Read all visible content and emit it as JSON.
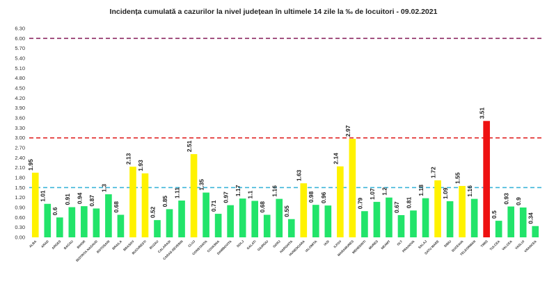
{
  "chart_data": {
    "type": "bar",
    "title": "Incidența cumulată a cazurilor la nivel județean în ultimele 14 zile   la ‰ de locuitori  - 09.02.2021",
    "xlabel": "",
    "ylabel": "",
    "ylim": [
      0,
      6.3
    ],
    "yticks": [
      "0.00",
      "0.30",
      "0.60",
      "0.90",
      "1.20",
      "1.50",
      "1.80",
      "2.10",
      "2.40",
      "2.70",
      "3.00",
      "3.30",
      "3.60",
      "3.90",
      "4.20",
      "4.50",
      "4.80",
      "5.10",
      "5.40",
      "5.70",
      "6.00",
      "6.30"
    ],
    "grid": false,
    "categories": [
      "ALBA",
      "ARAD",
      "ARGES",
      "BACAU",
      "BIHOR",
      "BISTRITA NASAUD",
      "BOTOSANI",
      "BRAILA",
      "BRASOV",
      "BUCURESTI",
      "BUZAU",
      "CALARASI",
      "CARAS-SEVERIN",
      "CLUJ",
      "CONSTANTA",
      "COVASNA",
      "DAMBOVITA",
      "DOLJ",
      "GALATI",
      "GIURGIU",
      "GORJ",
      "HARGHITA",
      "HUNEDOARA",
      "IALOMITA",
      "IASI",
      "ILFOV",
      "MARAMURES",
      "MEHEDINTI",
      "MURES",
      "NEAMT",
      "OLT",
      "PRAHOVA",
      "SALAJ",
      "SATU MARE",
      "SIBIU",
      "SUCEAVA",
      "TELEORMAN",
      "TIMIS",
      "TULCEA",
      "VALCEA",
      "VASLUI",
      "VRANCEA"
    ],
    "values": [
      1.95,
      1.01,
      0.6,
      0.91,
      0.94,
      0.87,
      1.3,
      0.68,
      2.13,
      1.93,
      0.52,
      0.85,
      1.11,
      2.51,
      1.35,
      0.71,
      0.97,
      1.17,
      1.1,
      0.68,
      1.16,
      0.55,
      1.63,
      0.98,
      0.96,
      2.14,
      2.97,
      0.79,
      1.07,
      1.2,
      0.67,
      0.81,
      1.18,
      1.72,
      1.09,
      1.55,
      1.16,
      3.51,
      0.5,
      0.93,
      0.9,
      0.34
    ],
    "value_labels": [
      "1.95",
      "1.01",
      "0.6",
      "0.91",
      "0.94",
      "0.87",
      "1.3",
      "0.68",
      "2.13",
      "1.93",
      "0.52",
      "0.85",
      "1.11",
      "2.51",
      "1.35",
      "0.71",
      "0.97",
      "1.17",
      "1.1",
      "0.68",
      "1.16",
      "0.55",
      "1.63",
      "0.98",
      "0.96",
      "2.14",
      "2.97",
      "0.79",
      "1.07",
      "1.2",
      "0.67",
      "0.81",
      "1.18",
      "1.72",
      "1.09",
      "1.55",
      "1.16",
      "3.51",
      "0.5",
      "0.93",
      "0.9",
      "0.34"
    ],
    "thresholds": [
      {
        "value": 1.5,
        "color": "#3cb4d8"
      },
      {
        "value": 3.0,
        "color": "#e02020"
      },
      {
        "value": 6.0,
        "color": "#8b2560"
      }
    ],
    "colors": {
      "low": "#22e46a",
      "medium": "#fff200",
      "high": "#ee1111"
    }
  }
}
